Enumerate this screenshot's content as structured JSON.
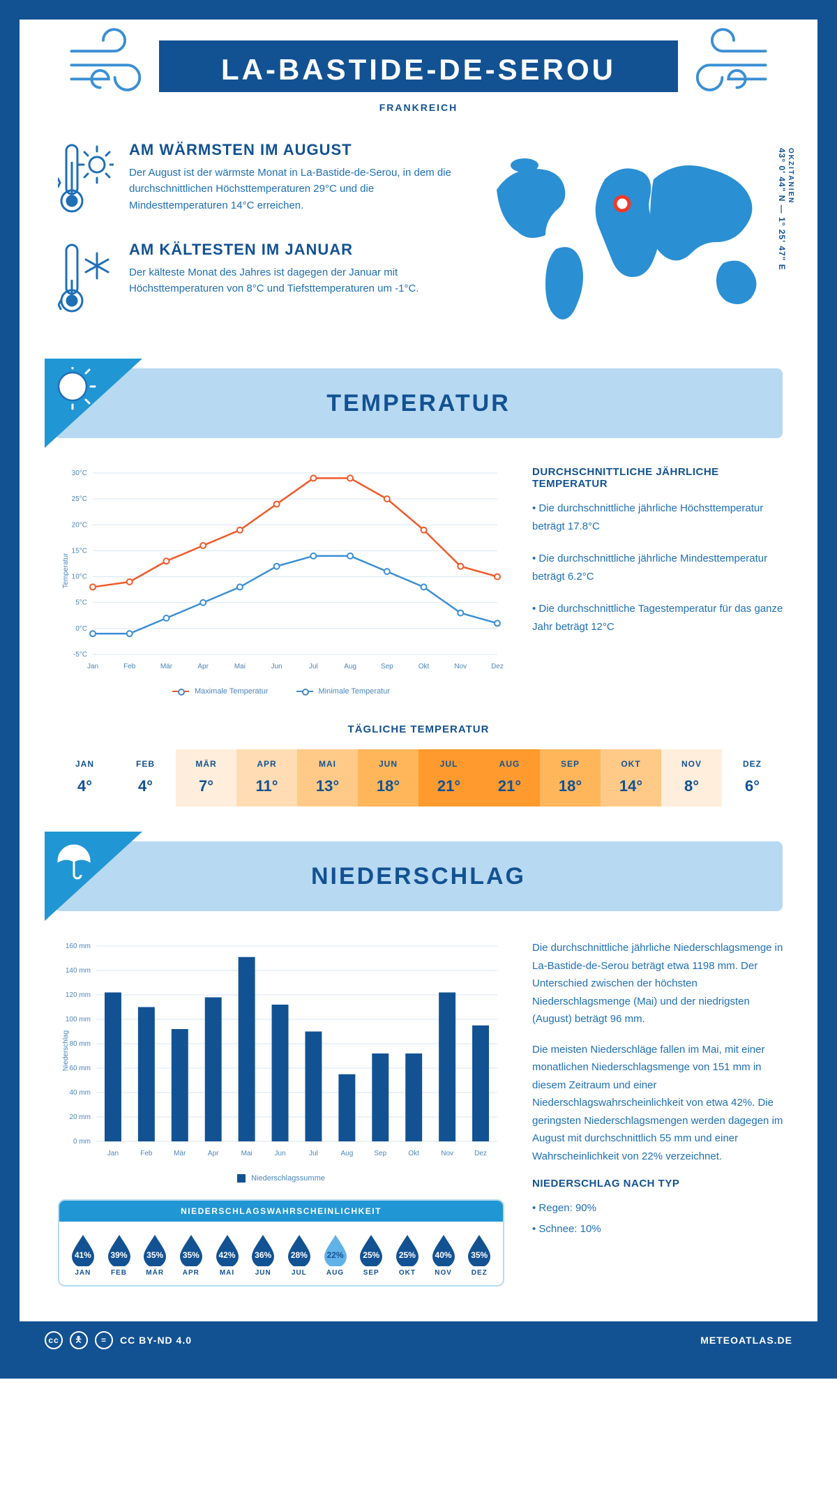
{
  "header": {
    "title": "LA-BASTIDE-DE-SEROU",
    "country": "FRANKREICH"
  },
  "coords": {
    "region": "OKZITANIEN",
    "lat": "43° 0' 44\" N",
    "lon": "1° 25' 47\" E"
  },
  "warm": {
    "heading": "AM WÄRMSTEN IM AUGUST",
    "body": "Der August ist der wärmste Monat in La-Bastide-de-Serou, in dem die durchschnittlichen Höchsttemperaturen 29°C und die Mindesttemperaturen 14°C erreichen."
  },
  "cold": {
    "heading": "AM KÄLTESTEN IM JANUAR",
    "body": "Der kälteste Monat des Jahres ist dagegen der Januar mit Höchsttemperaturen von 8°C und Tiefsttemperaturen um -1°C."
  },
  "sections": {
    "temperature": "TEMPERATUR",
    "precip": "NIEDERSCHLAG"
  },
  "temp_chart": {
    "type": "line",
    "months": [
      "Jan",
      "Feb",
      "Mär",
      "Apr",
      "Mai",
      "Jun",
      "Jul",
      "Aug",
      "Sep",
      "Okt",
      "Nov",
      "Dez"
    ],
    "max": [
      8,
      9,
      13,
      16,
      19,
      24,
      29,
      29,
      25,
      19,
      12,
      10
    ],
    "min": [
      -1,
      -1,
      2,
      5,
      8,
      12,
      14,
      14,
      11,
      8,
      3,
      1
    ],
    "max_color": "#f05a2a",
    "min_color": "#3b8fd4",
    "grid_color": "#d9e6f2",
    "ylim": [
      -5,
      30
    ],
    "ytick_step": 5,
    "ylabel": "Temperatur",
    "yticks_labels": [
      "-5°C",
      "0°C",
      "5°C",
      "10°C",
      "15°C",
      "20°C",
      "25°C",
      "30°C"
    ],
    "legend_max": "Maximale Temperatur",
    "legend_min": "Minimale Temperatur"
  },
  "temp_side": {
    "heading": "DURCHSCHNITTLICHE JÄHRLICHE TEMPERATUR",
    "b1": "• Die durchschnittliche jährliche Höchsttemperatur beträgt 17.8°C",
    "b2": "• Die durchschnittliche jährliche Mindesttemperatur beträgt 6.2°C",
    "b3": "• Die durchschnittliche Tagestemperatur für das ganze Jahr beträgt 12°C"
  },
  "daily_temp": {
    "heading": "TÄGLICHE TEMPERATUR",
    "months": [
      "JAN",
      "FEB",
      "MÄR",
      "APR",
      "MAI",
      "JUN",
      "JUL",
      "AUG",
      "SEP",
      "OKT",
      "NOV",
      "DEZ"
    ],
    "values": [
      "4°",
      "4°",
      "7°",
      "11°",
      "13°",
      "18°",
      "21°",
      "21°",
      "18°",
      "14°",
      "8°",
      "6°"
    ],
    "colors": [
      "#ffffff",
      "#ffffff",
      "#ffeedb",
      "#ffdcb3",
      "#ffca87",
      "#ffb65a",
      "#ff9a2e",
      "#ff9a2e",
      "#ffb65a",
      "#ffca87",
      "#ffeedb",
      "#ffffff"
    ]
  },
  "precip_chart": {
    "type": "bar",
    "months": [
      "Jan",
      "Feb",
      "Mär",
      "Apr",
      "Mai",
      "Jun",
      "Jul",
      "Aug",
      "Sep",
      "Okt",
      "Nov",
      "Dez"
    ],
    "values": [
      122,
      110,
      92,
      118,
      151,
      112,
      90,
      55,
      72,
      72,
      122,
      95
    ],
    "bar_color": "#125293",
    "grid_color": "#d9e6f2",
    "ylim": [
      0,
      160
    ],
    "ytick_step": 20,
    "ylabel": "Niederschlag",
    "yticks_labels": [
      "0 mm",
      "20 mm",
      "40 mm",
      "60 mm",
      "80 mm",
      "100 mm",
      "120 mm",
      "140 mm",
      "160 mm"
    ],
    "legend": "Niederschlagssumme"
  },
  "precip_side": {
    "p1": "Die durchschnittliche jährliche Niederschlagsmenge in La-Bastide-de-Serou beträgt etwa 1198 mm. Der Unterschied zwischen der höchsten Niederschlagsmenge (Mai) und der niedrigsten (August) beträgt 96 mm.",
    "p2": "Die meisten Niederschläge fallen im Mai, mit einer monatlichen Niederschlagsmenge von 151 mm in diesem Zeitraum und einer Niederschlagswahrscheinlichkeit von etwa 42%. Die geringsten Niederschlagsmengen werden dagegen im August mit durchschnittlich 55 mm und einer Wahrscheinlichkeit von 22% verzeichnet.",
    "type_heading": "NIEDERSCHLAG NACH TYP",
    "rain": "• Regen: 90%",
    "snow": "• Schnee: 10%"
  },
  "prob": {
    "title": "NIEDERSCHLAGSWAHRSCHEINLICHKEIT",
    "months": [
      "JAN",
      "FEB",
      "MÄR",
      "APR",
      "MAI",
      "JUN",
      "JUL",
      "AUG",
      "SEP",
      "OKT",
      "NOV",
      "DEZ"
    ],
    "pct": [
      "41%",
      "39%",
      "35%",
      "35%",
      "42%",
      "36%",
      "28%",
      "22%",
      "25%",
      "25%",
      "40%",
      "35%"
    ],
    "min_index": 7,
    "dark": "#125293",
    "light": "#61b2e8",
    "text_dark": "#fff",
    "text_light": "#125293"
  },
  "footer": {
    "license": "CC BY-ND 4.0",
    "site": "METEOATLAS.DE"
  }
}
